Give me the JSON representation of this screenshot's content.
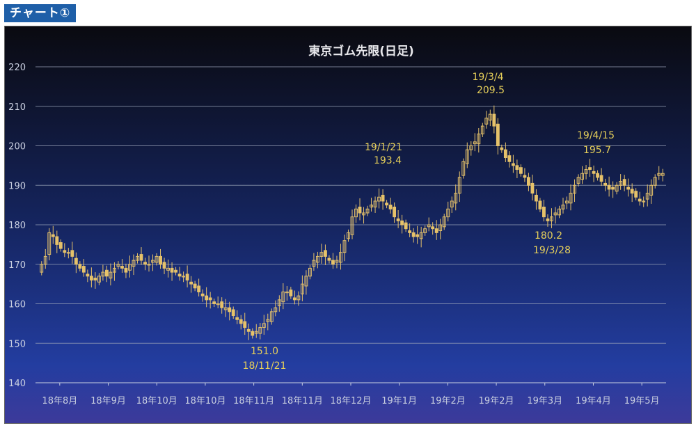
{
  "header": {
    "label": "チャート①"
  },
  "colors": {
    "candle": "#e6c26a",
    "grid": "#9aa3b8",
    "annotation": "#e6cf5a",
    "axis": "#c9cfe0",
    "title": "#e8e8ec"
  },
  "chart_data": {
    "type": "candlestick",
    "title": "東京ゴム先限(日足)",
    "ylim": [
      140,
      220
    ],
    "ytick_labels": [
      "140",
      "150",
      "160",
      "170",
      "180",
      "190",
      "200",
      "210",
      "220"
    ],
    "grid": true,
    "xtick_labels": [
      "18年8月",
      "18年9月",
      "18年10月",
      "18年10月",
      "18年11月",
      "18年11月",
      "18年12月",
      "19年1月",
      "19年2月",
      "19年2月",
      "19年3月",
      "19年4月",
      "19年5月"
    ],
    "series": [
      {
        "values": [
          170,
          172,
          178,
          177,
          175,
          174,
          173,
          173,
          172,
          170,
          169,
          168,
          167,
          166,
          166,
          167,
          168,
          167,
          168,
          169,
          170,
          169,
          168,
          170,
          171,
          172,
          171,
          170,
          170,
          171,
          172,
          170,
          169,
          169,
          168,
          168,
          167,
          167,
          166,
          165,
          164,
          163,
          162,
          161,
          161,
          160,
          160,
          159,
          159,
          158,
          157,
          156,
          155,
          154,
          153,
          152,
          153,
          154,
          155,
          156,
          158,
          159,
          161,
          163,
          163,
          162,
          161,
          162,
          165,
          167,
          169,
          171,
          172,
          173,
          172,
          171,
          170,
          171,
          173,
          176,
          178,
          182,
          184,
          183,
          183,
          184,
          185,
          186,
          187,
          186,
          185,
          184,
          182,
          181,
          180,
          179,
          178,
          177,
          177,
          178,
          179,
          180,
          179,
          178,
          180,
          182,
          184,
          186,
          188,
          192,
          196,
          199,
          200,
          201,
          203,
          205,
          207,
          208,
          205,
          200,
          199,
          197,
          196,
          195,
          194,
          193,
          192,
          190,
          188,
          186,
          184,
          182,
          181,
          182,
          183,
          184,
          185,
          186,
          188,
          190,
          192,
          193,
          194,
          194,
          193,
          192,
          191,
          190,
          189,
          189,
          190,
          191,
          190,
          189,
          188,
          187,
          186,
          186,
          188,
          190,
          192,
          193,
          193
        ]
      }
    ],
    "annotations": [
      {
        "date": "18/11/21",
        "value": "151.0"
      },
      {
        "date": "19/1/21",
        "value": "193.4"
      },
      {
        "date": "19/3/4",
        "value": "209.5"
      },
      {
        "date": "19/3/28",
        "value": "180.2"
      },
      {
        "date": "19/4/15",
        "value": "195.7"
      }
    ]
  }
}
